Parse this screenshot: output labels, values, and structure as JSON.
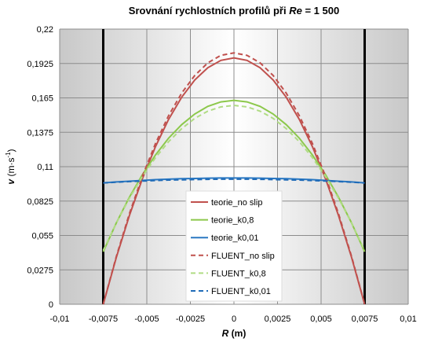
{
  "chart_data": {
    "type": "line",
    "title": [
      "Srovnání rychlostních profilů při ",
      "Re",
      " = 1 500"
    ],
    "x_label": [
      "R",
      " (m)"
    ],
    "y_label": [
      "v",
      " (m·s",
      "-1",
      ")"
    ],
    "x": [
      -0.0075,
      -0.00675,
      -0.006,
      -0.00525,
      -0.0045,
      -0.00375,
      -0.003,
      -0.00225,
      -0.0015,
      -0.00075,
      0,
      0.00075,
      0.0015,
      0.00225,
      0.003,
      0.00375,
      0.0045,
      0.00525,
      0.006,
      0.00675,
      0.0075
    ],
    "series": [
      {
        "name": "teorie_no slip",
        "color": "#c0504d",
        "dashed": false,
        "values": [
          0,
          0.0374,
          0.0709,
          0.1005,
          0.1261,
          0.1478,
          0.1655,
          0.1793,
          0.1891,
          0.195,
          0.197,
          0.195,
          0.1891,
          0.1793,
          0.1655,
          0.1478,
          0.1261,
          0.1005,
          0.0709,
          0.0374,
          0
        ]
      },
      {
        "name": "teorie_k0,8",
        "color": "#8cc84b",
        "dashed": false,
        "values": [
          0.042,
          0.065,
          0.0856,
          0.1037,
          0.1194,
          0.1328,
          0.1436,
          0.1521,
          0.1582,
          0.1618,
          0.163,
          0.1618,
          0.1582,
          0.1521,
          0.1436,
          0.1328,
          0.1194,
          0.1037,
          0.0856,
          0.065,
          0.042
        ]
      },
      {
        "name": "teorie_k0,01",
        "color": "#2a78c2",
        "dashed": false,
        "values": [
          0.097,
          0.0978,
          0.0984,
          0.099,
          0.0996,
          0.1,
          0.1004,
          0.1006,
          0.1008,
          0.101,
          0.101,
          0.101,
          0.1008,
          0.1006,
          0.1004,
          0.1,
          0.0996,
          0.099,
          0.0984,
          0.0978,
          0.097
        ]
      },
      {
        "name": "FLUENT_no slip",
        "color": "#c0504d",
        "dashed": true,
        "values": [
          0,
          0.0382,
          0.0724,
          0.1025,
          0.1286,
          0.1508,
          0.1688,
          0.1829,
          0.193,
          0.199,
          0.201,
          0.199,
          0.193,
          0.1829,
          0.1688,
          0.1508,
          0.1286,
          0.1025,
          0.0724,
          0.0382,
          0
        ]
      },
      {
        "name": "FLUENT_k0,8",
        "color": "#b0dc84",
        "dashed": true,
        "values": [
          0.043,
          0.065,
          0.0848,
          0.1022,
          0.1172,
          0.13,
          0.1404,
          0.1486,
          0.1544,
          0.1578,
          0.159,
          0.1578,
          0.1544,
          0.1486,
          0.1404,
          0.13,
          0.1172,
          0.1022,
          0.0848,
          0.065,
          0.043
        ]
      },
      {
        "name": "FLUENT_k0,01",
        "color": "#1f6bb8",
        "dashed": true,
        "values": [
          0.097,
          0.0976,
          0.0981,
          0.0985,
          0.0989,
          0.0993,
          0.0995,
          0.0997,
          0.0999,
          0.1,
          0.1,
          0.1,
          0.0999,
          0.0997,
          0.0995,
          0.0993,
          0.0989,
          0.0985,
          0.0981,
          0.0976,
          0.097
        ]
      }
    ],
    "vlines": [
      -0.0075,
      0.0075
    ],
    "xlim": [
      -0.01,
      0.01
    ],
    "xticks": [
      {
        "value": -0.01,
        "label": "-0,01"
      },
      {
        "value": -0.0075,
        "label": "-0,0075"
      },
      {
        "value": -0.005,
        "label": "-0,005"
      },
      {
        "value": -0.0025,
        "label": "-0,0025"
      },
      0,
      {
        "value": 0.0025,
        "label": "0,0025"
      },
      {
        "value": 0.005,
        "label": "0,005"
      },
      {
        "value": 0.0075,
        "label": "0,0075"
      },
      {
        "value": 0.01,
        "label": "0,01"
      }
    ],
    "ylim": [
      0,
      0.22
    ],
    "yticks": [
      0,
      {
        "value": 0.0275,
        "label": "0,0275"
      },
      {
        "value": 0.055,
        "label": "0,055"
      },
      {
        "value": 0.0825,
        "label": "0,0825"
      },
      {
        "value": 0.11,
        "label": "0,11"
      },
      {
        "value": 0.1375,
        "label": "0,1375"
      },
      {
        "value": 0.165,
        "label": "0,165"
      },
      {
        "value": 0.1925,
        "label": "0,1925"
      },
      {
        "value": 0.22,
        "label": "0,22"
      }
    ],
    "grid": true,
    "legend": "bottom-center"
  }
}
